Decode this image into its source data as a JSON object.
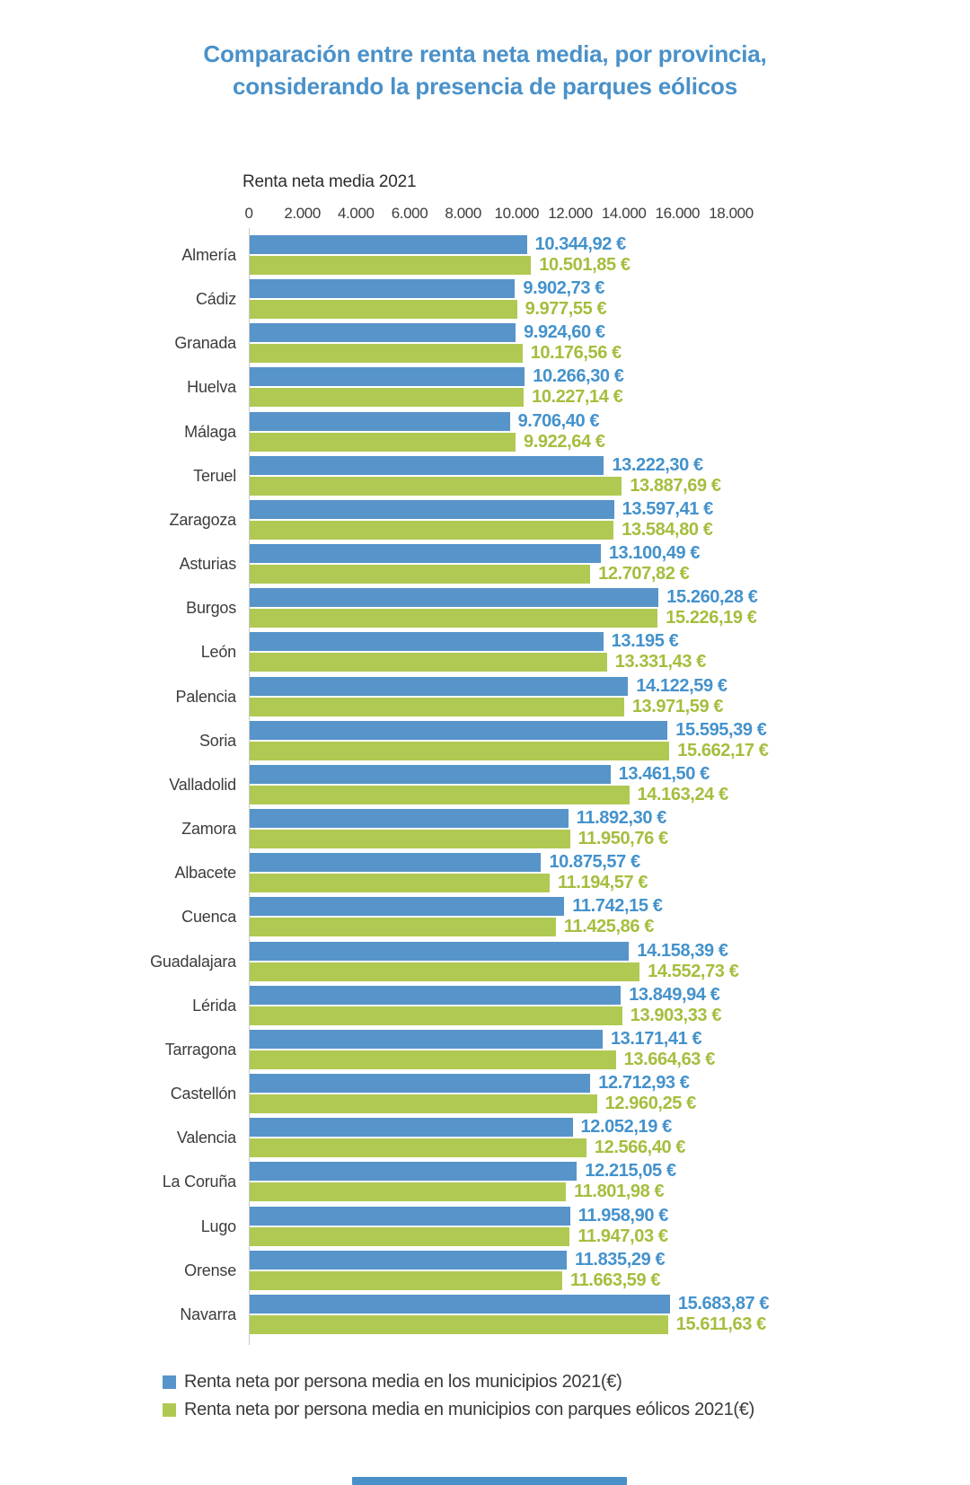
{
  "title": {
    "line1": "Comparación entre renta neta media, por provincia,",
    "line2": "considerando la presencia de parques eólicos",
    "color": "#4A91C9"
  },
  "axis": {
    "title": "Renta neta media 2021"
  },
  "legend": {
    "items": [
      {
        "label": "Renta neta por persona media en los municipios 2021(€)",
        "color": "#5794C9"
      },
      {
        "label": "Renta neta por persona media en municipios con parques eólicos 2021(€)",
        "color": "#B0C952"
      }
    ]
  },
  "footer": {
    "indicator_color": "#4A90C8"
  },
  "colors": {
    "bar_blue": "#5794C9",
    "bar_green": "#B0C952",
    "value_blue": "#4492CC",
    "value_green": "#A4BE3E",
    "text_dark": "#3C3C3C",
    "axis_line": "#C9C9C9",
    "title_blue": "#4A91C9"
  },
  "chart_data": {
    "type": "bar",
    "orientation": "horizontal",
    "title": "Comparación entre renta neta media, por provincia, considerando la presencia de parques eólicos",
    "xlabel": "Renta neta media 2021",
    "ylabel": "",
    "xlim": [
      0,
      18000
    ],
    "grid": false,
    "legend_position": "bottom-left",
    "x_ticks": {
      "values": [
        0,
        2000,
        4000,
        6000,
        8000,
        10000,
        12000,
        14000,
        16000,
        18000
      ],
      "labels": [
        "0",
        "2.000",
        "4.000",
        "6.000",
        "8.000",
        "10.000",
        "12.000",
        "14.000",
        "16.000",
        "18.000"
      ]
    },
    "categories": [
      "Almería",
      "Cádiz",
      "Granada",
      "Huelva",
      "Málaga",
      "Teruel",
      "Zaragoza",
      "Asturias",
      "Burgos",
      "León",
      "Palencia",
      "Soria",
      "Valladolid",
      "Zamora",
      "Albacete",
      "Cuenca",
      "Guadalajara",
      "Lérida",
      "Tarragona",
      "Castellón",
      "Valencia",
      "La Coruña",
      "Lugo",
      "Orense",
      "Navarra"
    ],
    "series": [
      {
        "name": "Renta neta por persona media en los municipios 2021(€)",
        "color": "#5794C9",
        "label_color": "#4492CC",
        "values": [
          10344.92,
          9902.73,
          9924.6,
          10266.3,
          9706.4,
          13222.3,
          13597.41,
          13100.49,
          15260.28,
          13195,
          14122.59,
          15595.39,
          13461.5,
          11892.3,
          10875.57,
          11742.15,
          14158.39,
          13849.94,
          13171.41,
          12712.93,
          12052.19,
          12215.05,
          11958.9,
          11835.29,
          15683.87
        ],
        "labels": [
          "10.344,92 €",
          "9.902,73 €",
          "9.924,60 €",
          "10.266,30 €",
          "9.706,40 €",
          "13.222,30 €",
          "13.597,41 €",
          "13.100,49 €",
          "15.260,28 €",
          "13.195 €",
          "14.122,59 €",
          "15.595,39 €",
          "13.461,50 €",
          "11.892,30 €",
          "10.875,57 €",
          "11.742,15 €",
          "14.158,39 €",
          "13.849,94 €",
          "13.171,41 €",
          "12.712,93 €",
          "12.052,19 €",
          "12.215,05 €",
          "11.958,90 €",
          "11.835,29 €",
          "15.683,87 €"
        ]
      },
      {
        "name": "Renta neta por persona media en municipios con parques eólicos 2021(€)",
        "color": "#B0C952",
        "label_color": "#A4BE3E",
        "values": [
          10501.85,
          9977.55,
          10176.56,
          10227.14,
          9922.64,
          13887.69,
          13584.8,
          12707.82,
          15226.19,
          13331.43,
          13971.59,
          15662.17,
          14163.24,
          11950.76,
          11194.57,
          11425.86,
          14552.73,
          13903.33,
          13664.63,
          12960.25,
          12566.4,
          11801.98,
          11947.03,
          11663.59,
          15611.63
        ],
        "labels": [
          "10.501,85 €",
          "9.977,55 €",
          "10.176,56 €",
          "10.227,14 €",
          "9.922,64 €",
          "13.887,69 €",
          "13.584,80 €",
          "12.707,82 €",
          "15.226,19 €",
          "13.331,43 €",
          "13.971,59 €",
          "15.662,17 €",
          "14.163,24 €",
          "11.950,76 €",
          "11.194,57 €",
          "11.425,86 €",
          "14.552,73 €",
          "13.903,33 €",
          "13.664,63 €",
          "12.960,25 €",
          "12.566,40 €",
          "11.801,98 €",
          "11.947,03 €",
          "11.663,59 €",
          "15.611,63 €"
        ]
      }
    ]
  }
}
